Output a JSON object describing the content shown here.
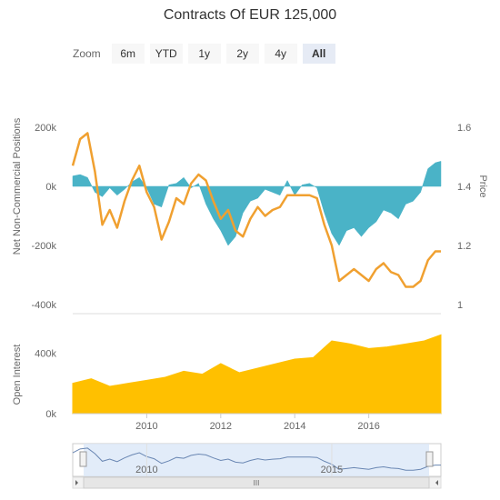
{
  "title": "Contracts Of EUR 125,000",
  "zoom": {
    "label": "Zoom",
    "buttons": [
      "6m",
      "YTD",
      "1y",
      "2y",
      "4y",
      "All"
    ],
    "active": "All"
  },
  "scrollbar": {
    "grip_label": "III"
  },
  "colors": {
    "positions_fill": "#4ab3c7",
    "price_line": "#f0a030",
    "open_interest_fill": "#ffc000",
    "navigator_line": "#6a87b3",
    "navigator_fill": "#dbe7f7"
  },
  "chart_data": [
    {
      "type": "area",
      "ylabel": "Net Non-Commercial Positions",
      "ylim": [
        -400000,
        200000
      ],
      "ytick_labels": [
        "200k",
        "0k",
        "-200k",
        "-400k"
      ],
      "yticks": [
        200000,
        0,
        -200000,
        -400000
      ],
      "series": [
        {
          "kind": "positions",
          "x": [
            2008.0,
            2008.2,
            2008.4,
            2008.6,
            2008.8,
            2009.0,
            2009.2,
            2009.4,
            2009.6,
            2009.8,
            2010.0,
            2010.2,
            2010.4,
            2010.6,
            2010.8,
            2011.0,
            2011.2,
            2011.4,
            2011.6,
            2011.8,
            2012.0,
            2012.2,
            2012.4,
            2012.6,
            2012.8,
            2013.0,
            2013.2,
            2013.4,
            2013.6,
            2013.8,
            2014.0,
            2014.2,
            2014.4,
            2014.6,
            2014.8,
            2015.0,
            2015.2,
            2015.4,
            2015.6,
            2015.8,
            2016.0,
            2016.2,
            2016.4,
            2016.6,
            2016.8,
            2017.0,
            2017.2,
            2017.4,
            2017.6,
            2017.8,
            2017.95
          ],
          "y": [
            35000,
            40000,
            30000,
            -20000,
            -35000,
            -5000,
            -30000,
            -10000,
            15000,
            30000,
            -5000,
            -60000,
            -70000,
            5000,
            10000,
            30000,
            -5000,
            10000,
            -60000,
            -110000,
            -150000,
            -200000,
            -170000,
            -90000,
            -50000,
            -40000,
            -10000,
            -20000,
            -30000,
            20000,
            -30000,
            5000,
            10000,
            -5000,
            -90000,
            -160000,
            -200000,
            -150000,
            -140000,
            -170000,
            -140000,
            -120000,
            -80000,
            -90000,
            -110000,
            -60000,
            -50000,
            -20000,
            60000,
            80000,
            85000
          ]
        },
        {
          "kind": "price",
          "ylim": [
            1.0,
            1.6
          ],
          "ytick_labels": [
            "1.6",
            "1.4",
            "1.2",
            "1"
          ],
          "yticks": [
            1.6,
            1.4,
            1.2,
            1.0
          ],
          "ylabel": "Price",
          "x": [
            2008.0,
            2008.2,
            2008.4,
            2008.6,
            2008.8,
            2009.0,
            2009.2,
            2009.4,
            2009.6,
            2009.8,
            2010.0,
            2010.2,
            2010.4,
            2010.6,
            2010.8,
            2011.0,
            2011.2,
            2011.4,
            2011.6,
            2011.8,
            2012.0,
            2012.2,
            2012.4,
            2012.6,
            2012.8,
            2013.0,
            2013.2,
            2013.4,
            2013.6,
            2013.8,
            2014.0,
            2014.2,
            2014.4,
            2014.6,
            2014.8,
            2015.0,
            2015.2,
            2015.4,
            2015.6,
            2015.8,
            2016.0,
            2016.2,
            2016.4,
            2016.6,
            2016.8,
            2017.0,
            2017.2,
            2017.4,
            2017.6,
            2017.8,
            2017.95
          ],
          "y": [
            1.47,
            1.56,
            1.58,
            1.45,
            1.27,
            1.32,
            1.26,
            1.35,
            1.42,
            1.47,
            1.38,
            1.33,
            1.22,
            1.28,
            1.36,
            1.34,
            1.41,
            1.44,
            1.42,
            1.35,
            1.29,
            1.32,
            1.25,
            1.23,
            1.29,
            1.33,
            1.3,
            1.32,
            1.33,
            1.37,
            1.37,
            1.37,
            1.37,
            1.36,
            1.27,
            1.2,
            1.08,
            1.1,
            1.12,
            1.1,
            1.08,
            1.12,
            1.14,
            1.11,
            1.1,
            1.06,
            1.06,
            1.08,
            1.15,
            1.18,
            1.18
          ]
        }
      ]
    },
    {
      "type": "area",
      "ylabel": "Open Interest",
      "ylim": [
        0,
        600000
      ],
      "ytick_labels": [
        "400k",
        "0k"
      ],
      "yticks": [
        400000,
        0
      ],
      "xtick_labels": [
        "2010",
        "2012",
        "2014",
        "2016"
      ],
      "xticks": [
        2010,
        2012,
        2014,
        2016
      ],
      "xlim": [
        2008.0,
        2017.95
      ],
      "series": [
        {
          "name": "",
          "x": [
            2008.0,
            2008.5,
            2009.0,
            2009.5,
            2010.0,
            2010.5,
            2011.0,
            2011.5,
            2012.0,
            2012.5,
            2013.0,
            2013.5,
            2014.0,
            2014.5,
            2015.0,
            2015.5,
            2016.0,
            2016.5,
            2017.0,
            2017.5,
            2017.95
          ],
          "y": [
            200000,
            230000,
            180000,
            200000,
            220000,
            240000,
            280000,
            260000,
            330000,
            270000,
            300000,
            330000,
            360000,
            370000,
            480000,
            460000,
            430000,
            440000,
            460000,
            480000,
            520000
          ]
        }
      ]
    },
    {
      "type": "line",
      "navigator": true,
      "xtick_labels": [
        "2010",
        "2015"
      ],
      "xticks": [
        2010,
        2015
      ]
    }
  ]
}
